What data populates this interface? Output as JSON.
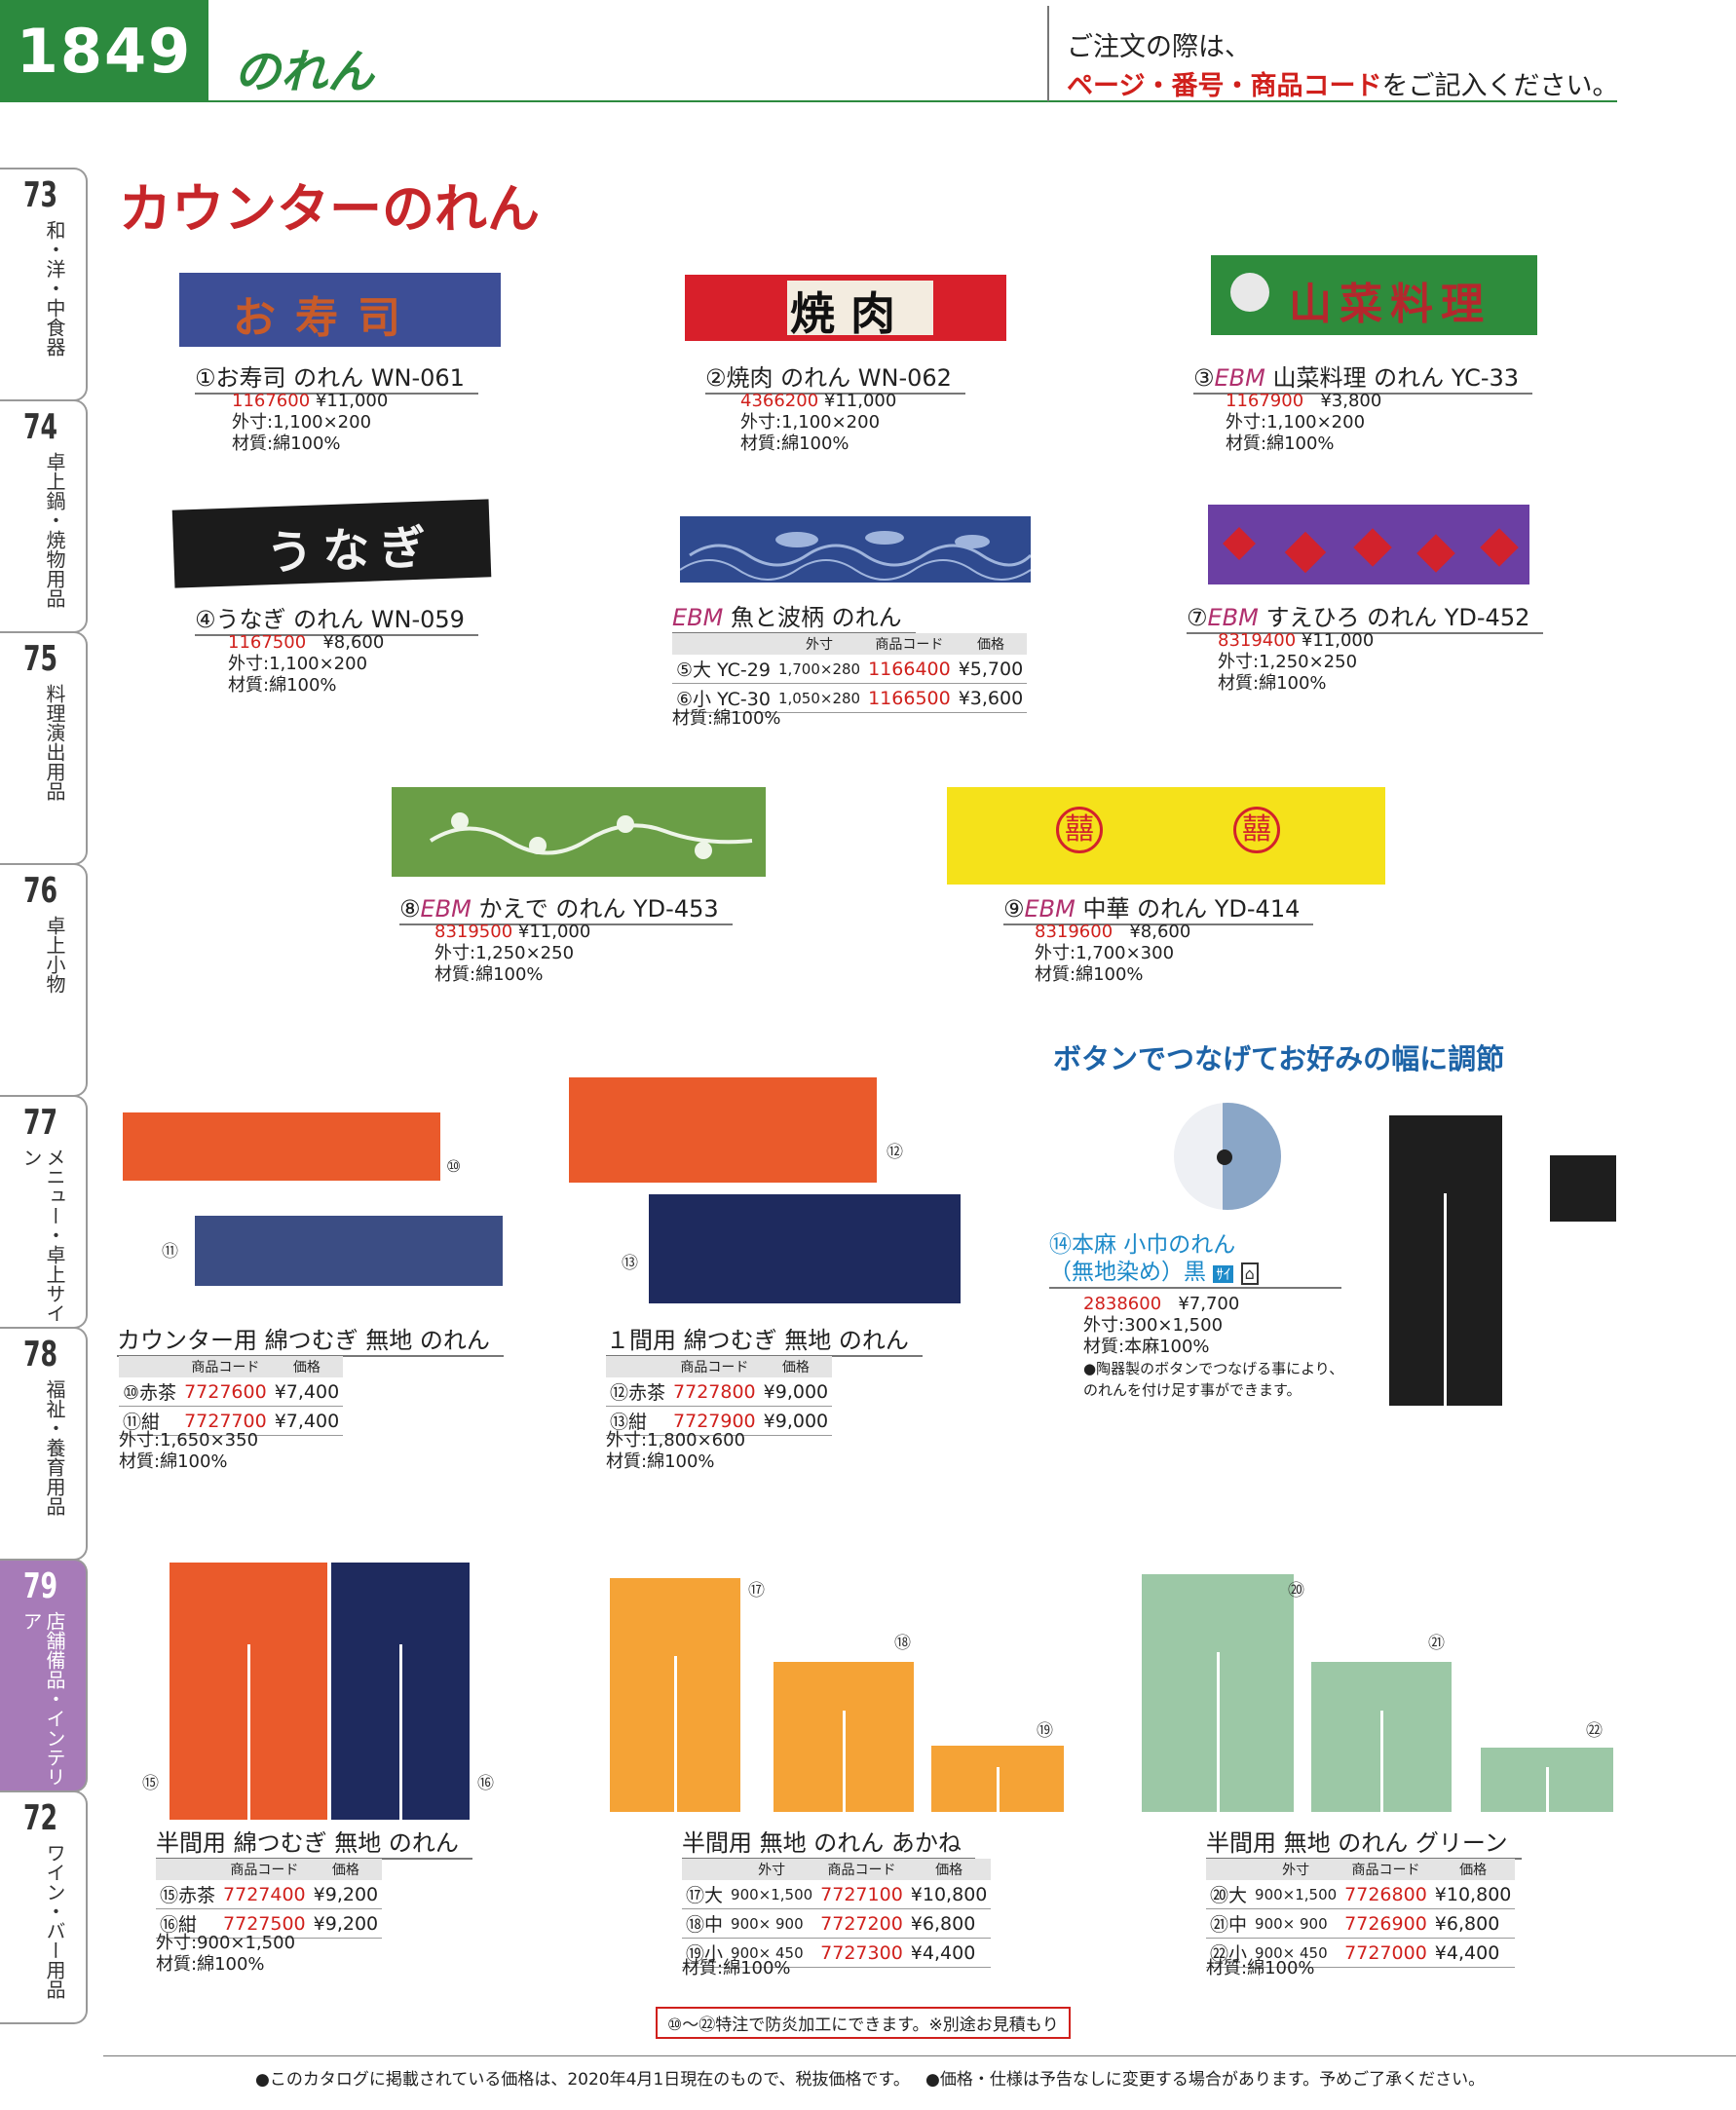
{
  "header": {
    "page_number": "1849",
    "section": "のれん",
    "order_note_1": "ご注文の際は、",
    "order_note_2a": "ページ・番号・商品コード",
    "order_note_2b": "をご記入ください。"
  },
  "side_tabs": [
    {
      "num": "73",
      "label": "和・洋・中食器"
    },
    {
      "num": "74",
      "label": "卓上鍋・焼物用品"
    },
    {
      "num": "75",
      "label": "料理演出用品"
    },
    {
      "num": "76",
      "label": "卓上小物"
    },
    {
      "num": "77",
      "label": "メニュー・卓上サイン"
    },
    {
      "num": "78",
      "label": "福祉・養育用品"
    },
    {
      "num": "79",
      "label": "店舗備品・インテリア"
    },
    {
      "num": "72",
      "label": "ワイン・バー用品"
    }
  ],
  "main_title": "カウンターのれん",
  "products": {
    "p1": {
      "no": "①",
      "name": "お寿司 のれん WN-061",
      "code": "1167600",
      "price": "¥11,000",
      "size": "外寸:1,100×200",
      "material": "材質:綿100%",
      "print": "お寿司"
    },
    "p2": {
      "no": "②",
      "name": "焼肉 のれん WN-062",
      "code": "4366200",
      "price": "¥11,000",
      "size": "外寸:1,100×200",
      "material": "材質:綿100%",
      "print": "焼肉"
    },
    "p3": {
      "no": "③",
      "brand": "EBM",
      "name": " 山菜料理 のれん YC-33",
      "code": "1167900",
      "price": "¥3,800",
      "size": "外寸:1,100×200",
      "material": "材質:綿100%",
      "print": "山菜料理"
    },
    "p4": {
      "no": "④",
      "name": "うなぎ のれん WN-059",
      "code": "1167500",
      "price": "¥8,600",
      "size": "外寸:1,100×200",
      "material": "材質:綿100%",
      "print": "うなぎ"
    },
    "p56": {
      "brand": "EBM",
      "name": " 魚と波柄 のれん",
      "head_size": "外寸",
      "head_code": "商品コード",
      "head_price": "価格",
      "rows": [
        {
          "no": "⑤",
          "label": "大 YC-29",
          "size": "1,700×280",
          "code": "1166400",
          "price": "¥5,700"
        },
        {
          "no": "⑥",
          "label": "小 YC-30",
          "size": "1,050×280",
          "code": "1166500",
          "price": "¥3,600"
        }
      ],
      "material": "材質:綿100%"
    },
    "p7": {
      "no": "⑦",
      "brand": "EBM",
      "name": " すえひろ のれん YD-452",
      "code": "8319400",
      "price": "¥11,000",
      "size": "外寸:1,250×250",
      "material": "材質:綿100%"
    },
    "p8": {
      "no": "⑧",
      "brand": "EBM",
      "name": " かえで のれん YD-453",
      "code": "8319500",
      "price": "¥11,000",
      "size": "外寸:1,250×250",
      "material": "材質:綿100%"
    },
    "p9": {
      "no": "⑨",
      "brand": "EBM",
      "name": " 中華 のれん YD-414",
      "code": "8319600",
      "price": "¥8,600",
      "size": "外寸:1,700×300",
      "material": "材質:綿100%",
      "print": "囍"
    },
    "p1011": {
      "name": "カウンター用 綿つむぎ 無地 のれん",
      "head_code": "商品コード",
      "head_price": "価格",
      "rows": [
        {
          "no": "⑩",
          "label": "赤茶",
          "code": "7727600",
          "price": "¥7,400"
        },
        {
          "no": "⑪",
          "label": "紺",
          "code": "7727700",
          "price": "¥7,400"
        }
      ],
      "size": "外寸:1,650×350",
      "material": "材質:綿100%"
    },
    "p1213": {
      "name": "１間用 綿つむぎ 無地 のれん",
      "head_code": "商品コード",
      "head_price": "価格",
      "rows": [
        {
          "no": "⑫",
          "label": "赤茶",
          "code": "7727800",
          "price": "¥9,000"
        },
        {
          "no": "⑬",
          "label": "紺",
          "code": "7727900",
          "price": "¥9,000"
        }
      ],
      "size": "外寸:1,800×600",
      "material": "材質:綿100%"
    },
    "p14": {
      "heading": "ボタンでつなげてお好みの幅に調節",
      "no": "⑭",
      "name_1": "本麻 小巾のれん",
      "name_2": "（無地染め）黒",
      "badge": "ｻｲ",
      "code": "2838600",
      "price": "¥7,700",
      "size": "外寸:300×1,500",
      "material": "材質:本麻100%",
      "note_1": "●陶器製のボタンでつなげる事により、",
      "note_2": "のれんを付け足す事ができます。"
    },
    "p1516": {
      "name": "半間用 綿つむぎ 無地 のれん",
      "head_code": "商品コード",
      "head_price": "価格",
      "rows": [
        {
          "no": "⑮",
          "label": "赤茶",
          "code": "7727400",
          "price": "¥9,200"
        },
        {
          "no": "⑯",
          "label": "紺",
          "code": "7727500",
          "price": "¥9,200"
        }
      ],
      "size": "外寸:900×1,500",
      "material": "材質:綿100%"
    },
    "p1719": {
      "name": "半間用 無地 のれん あかね",
      "head_size": "外寸",
      "head_code": "商品コード",
      "head_price": "価格",
      "rows": [
        {
          "no": "⑰",
          "label": "大",
          "size": "900×1,500",
          "code": "7727100",
          "price": "¥10,800"
        },
        {
          "no": "⑱",
          "label": "中",
          "size": "900×  900",
          "code": "7727200",
          "price": "¥6,800"
        },
        {
          "no": "⑲",
          "label": "小",
          "size": "900×  450",
          "code": "7727300",
          "price": "¥4,400"
        }
      ],
      "material": "材質:綿100%"
    },
    "p2022": {
      "name": "半間用 無地 のれん グリーン",
      "head_size": "外寸",
      "head_code": "商品コード",
      "head_price": "価格",
      "rows": [
        {
          "no": "⑳",
          "label": "大",
          "size": "900×1,500",
          "code": "7726800",
          "price": "¥10,800"
        },
        {
          "no": "㉑",
          "label": "中",
          "size": "900×  900",
          "code": "7726900",
          "price": "¥6,800"
        },
        {
          "no": "㉒",
          "label": "小",
          "size": "900×  450",
          "code": "7727000",
          "price": "¥4,400"
        }
      ],
      "material": "材質:綿100%"
    }
  },
  "callouts": {
    "c10": "⑩",
    "c11": "⑪",
    "c12": "⑫",
    "c13": "⑬",
    "c15": "⑮",
    "c16": "⑯",
    "c17": "⑰",
    "c18": "⑱",
    "c19": "⑲",
    "c20": "⑳",
    "c21": "㉑",
    "c22": "㉒"
  },
  "notice": "⑩〜㉒特注で防炎加工にできます。※別途お見積もり",
  "footer": {
    "note_1": "●このカタログに掲載されている価格は、2020年4月1日現在のもので、税抜価格です。",
    "note_2": "●価格・仕様は予告なしに変更する場合があります。予めご了承ください。"
  },
  "colors": {
    "brand_green": "#2c8a3e",
    "title_red": "#c6262a",
    "code_red": "#d0201c",
    "ebm": "#b0306e",
    "active_tab": "#a77bb8"
  }
}
